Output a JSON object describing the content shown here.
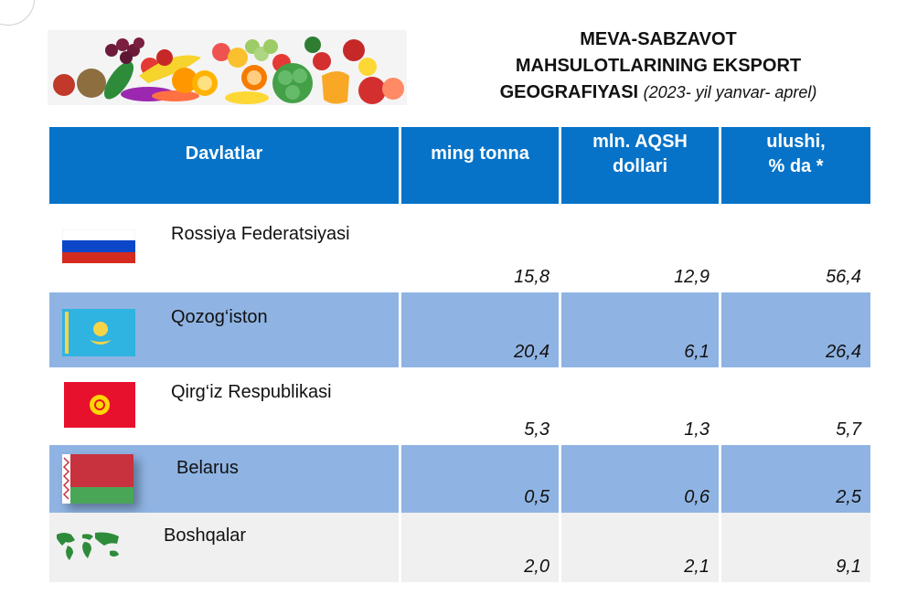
{
  "title": {
    "line1": "MEVA-SABZAVOT",
    "line2": "MAHSULOTLARINING EKSPORT",
    "line3": "GEOGRAFIYASI",
    "period": "(2023- yil yanvar- aprel)"
  },
  "table": {
    "headers": {
      "country": "Davlatlar",
      "tons": "ming tonna",
      "usd_line1": "mln. AQSH",
      "usd_line2": "dollari",
      "share_line1": "ulushi,",
      "share_line2": "% da *"
    },
    "rows": [
      {
        "country": "Rossiya Federatsiyasi",
        "tons": "15,8",
        "usd": "12,9",
        "share": "56,4",
        "flag": "russia-flag-icon"
      },
      {
        "country": "Qozog‘iston",
        "tons": "20,4",
        "usd": "6,1",
        "share": "26,4",
        "flag": "kazakhstan-flag-icon"
      },
      {
        "country": "Qirg‘iz Respublikasi",
        "tons": "5,3",
        "usd": "1,3",
        "share": "5,7",
        "flag": "kyrgyzstan-flag-icon"
      },
      {
        "country": "Belarus",
        "tons": "0,5",
        "usd": "0,6",
        "share": "2,5",
        "flag": "belarus-flag-icon"
      },
      {
        "country": "Boshqalar",
        "tons": "2,0",
        "usd": "2,1",
        "share": "9,1",
        "flag": "world-map-icon"
      }
    ]
  },
  "colors": {
    "header_blue": "#0673c8",
    "row_blue": "#8fb4e3",
    "row_gray": "#f0f0f0"
  }
}
